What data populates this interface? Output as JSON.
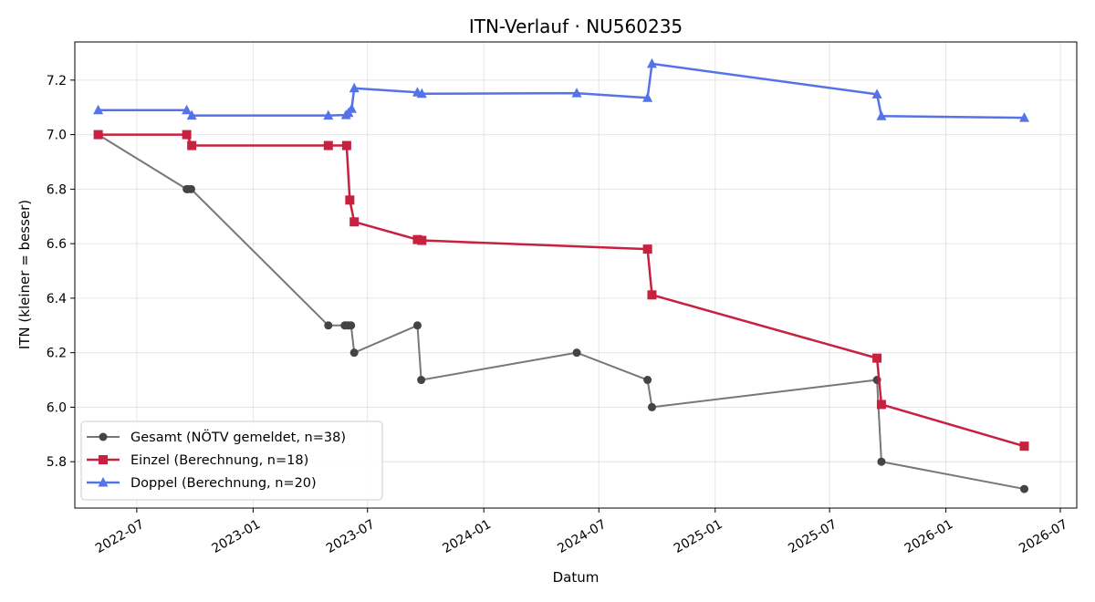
{
  "chart_data": {
    "type": "line",
    "title": "ITN-Verlauf · NU560235",
    "xlabel": "Datum",
    "ylabel": "ITN  (kleiner = besser)",
    "x_type": "date",
    "xlim": [
      "2022-03-25",
      "2026-07-27"
    ],
    "ylim": [
      5.63,
      7.34
    ],
    "x_ticks": [
      "2022-07-01",
      "2023-01-01",
      "2023-07-01",
      "2024-01-01",
      "2024-07-01",
      "2025-01-01",
      "2025-07-01",
      "2026-01-01",
      "2026-07-01"
    ],
    "x_tick_labels": [
      "2022-07",
      "2023-01",
      "2023-07",
      "2024-01",
      "2024-07",
      "2025-01",
      "2025-07",
      "2026-01",
      "2026-07"
    ],
    "y_ticks": [
      5.8,
      6.0,
      6.2,
      6.4,
      6.6,
      6.8,
      7.0,
      7.2
    ],
    "y_tick_labels": [
      "5.8",
      "6.0",
      "6.2",
      "6.4",
      "6.6",
      "6.8",
      "7.0",
      "7.2"
    ],
    "grid": true,
    "legend_position": "lower-left",
    "series": [
      {
        "name": "Gesamt (NÖTV gemeldet, n=38)",
        "color": "#777777",
        "marker_color": "#444444",
        "marker": "circle",
        "x": [
          "2022-05-01",
          "2022-09-18",
          "2022-09-20",
          "2022-09-25",
          "2023-04-30",
          "2023-05-26",
          "2023-05-28",
          "2023-06-01",
          "2023-06-05",
          "2023-06-10",
          "2023-09-18",
          "2023-09-24",
          "2024-05-27",
          "2024-09-16",
          "2024-09-23",
          "2025-09-14",
          "2025-09-21",
          "2026-05-05"
        ],
        "y": [
          7.0,
          6.8,
          6.8,
          6.8,
          6.3,
          6.3,
          6.3,
          6.3,
          6.3,
          6.2,
          6.3,
          6.1,
          6.2,
          6.1,
          6.0,
          6.1,
          5.8,
          5.7
        ]
      },
      {
        "name": "Einzel (Berechnung, n=18)",
        "color": "#c8203f",
        "marker_color": "#c8203f",
        "marker": "square",
        "x": [
          "2022-05-01",
          "2022-09-18",
          "2022-09-26",
          "2023-04-30",
          "2023-05-29",
          "2023-06-03",
          "2023-06-10",
          "2023-09-18",
          "2023-09-25",
          "2024-09-16",
          "2024-09-23",
          "2025-09-14",
          "2025-09-21",
          "2026-05-05"
        ],
        "y": [
          7.0,
          7.0,
          6.96,
          6.96,
          6.96,
          6.76,
          6.68,
          6.615,
          6.612,
          6.58,
          6.412,
          6.18,
          6.01,
          5.857
        ]
      },
      {
        "name": "Doppel (Berechnung, n=20)",
        "color": "#5473e8",
        "marker_color": "#5473e8",
        "marker": "triangle",
        "x": [
          "2022-05-01",
          "2022-09-18",
          "2022-09-26",
          "2023-04-30",
          "2023-05-28",
          "2023-06-01",
          "2023-06-06",
          "2023-06-10",
          "2023-09-18",
          "2023-09-25",
          "2024-05-27",
          "2024-09-16",
          "2024-09-23",
          "2025-09-14",
          "2025-09-21",
          "2026-05-05"
        ],
        "y": [
          7.09,
          7.09,
          7.07,
          7.07,
          7.072,
          7.08,
          7.095,
          7.17,
          7.155,
          7.15,
          7.152,
          7.135,
          7.26,
          7.148,
          7.068,
          7.062
        ]
      }
    ]
  }
}
